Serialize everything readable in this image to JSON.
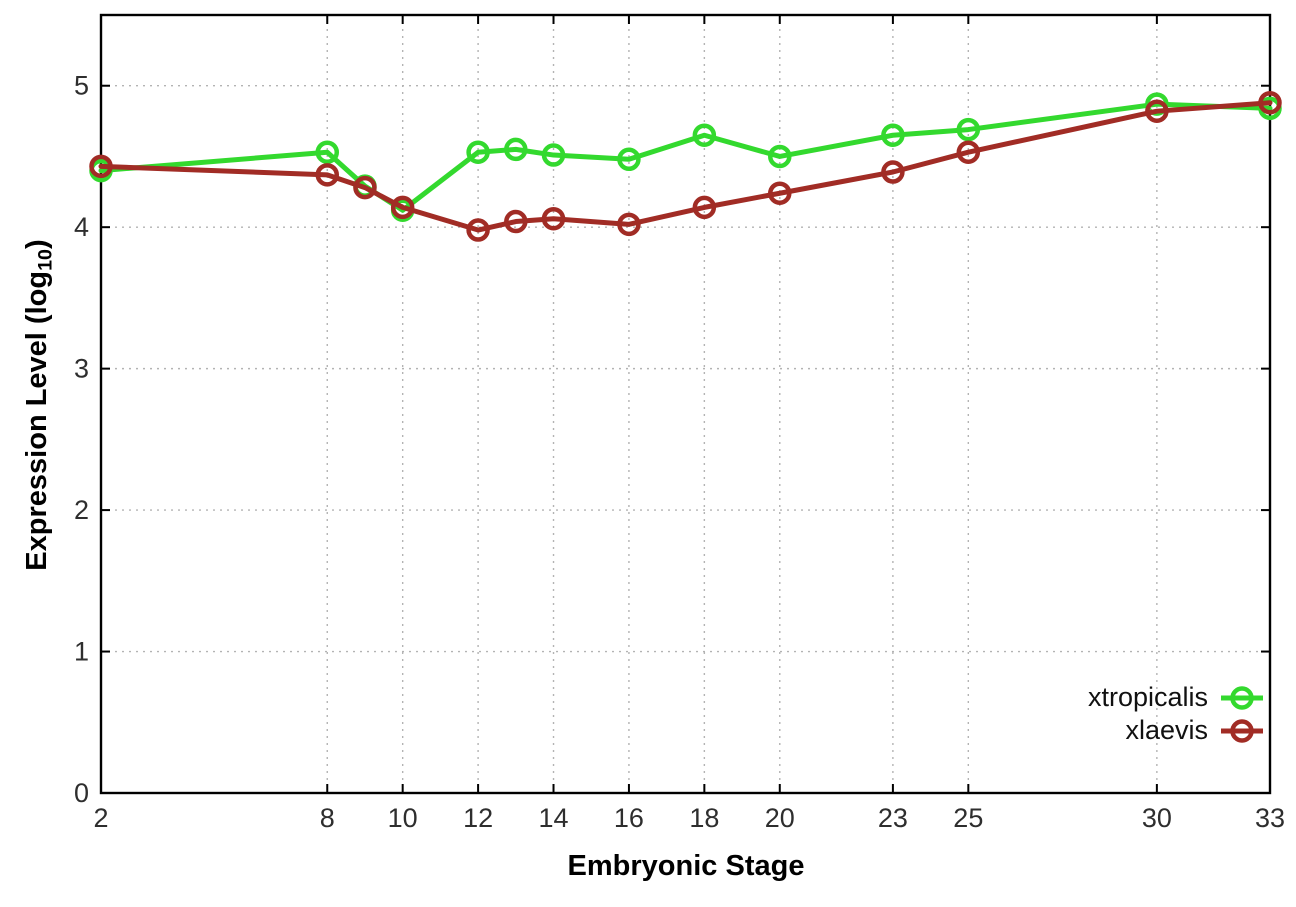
{
  "figure": {
    "background": "#ffffff",
    "xlabel": "Embryonic Stage",
    "ylabel": {
      "prefix": "Expression Level (log",
      "sub": "10",
      "suffix": ")"
    }
  },
  "chart_data": {
    "type": "line",
    "title": "",
    "xlabel": "Embryonic Stage",
    "ylabel": "Expression Level (log10)",
    "xlim": [
      2,
      33
    ],
    "ylim": [
      0,
      5.5
    ],
    "grid": true,
    "grid_style": "dotted",
    "legend_position": "inside bottom-right",
    "x": [
      2,
      8,
      9,
      10,
      12,
      13,
      14,
      16,
      18,
      20,
      23,
      25,
      30,
      33
    ],
    "xticks": [
      2,
      8,
      10,
      12,
      14,
      16,
      18,
      20,
      23,
      25,
      30,
      33
    ],
    "yticks": [
      0,
      1,
      2,
      3,
      4,
      5
    ],
    "series": [
      {
        "name": "xtropicalis",
        "color": "#33d92e",
        "marker": "open-circle",
        "values": [
          4.4,
          4.53,
          4.29,
          4.12,
          4.53,
          4.55,
          4.51,
          4.48,
          4.65,
          4.5,
          4.65,
          4.69,
          4.87,
          4.84
        ]
      },
      {
        "name": "xlaevis",
        "color": "#a12c25",
        "marker": "open-circle",
        "values": [
          4.43,
          4.37,
          4.28,
          4.14,
          3.98,
          4.04,
          4.06,
          4.02,
          4.14,
          4.24,
          4.39,
          4.53,
          4.82,
          4.88
        ]
      }
    ]
  }
}
